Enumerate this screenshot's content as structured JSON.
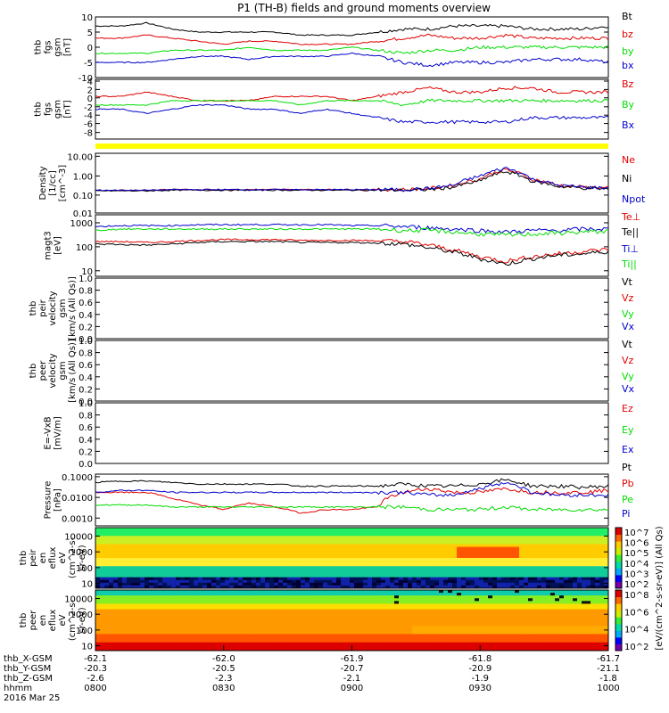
{
  "title": "P1 (TH-B) fields and ground moments overview",
  "colors": {
    "black": "#000000",
    "red": "#e00000",
    "green": "#00dd00",
    "blue": "#0000cc",
    "yellow": "#ffff00"
  },
  "chart_data": [
    {
      "type": "line",
      "ylabel": [
        "thb",
        "fgs",
        "gsm",
        "[nT]"
      ],
      "yticks": [
        "10",
        "5",
        "0",
        "-5",
        "-10"
      ],
      "ylim": [
        -10,
        10
      ],
      "series": [
        {
          "name": "Bt",
          "color": "#000000",
          "values": [
            7,
            7,
            8,
            6,
            5,
            5,
            5,
            5,
            4,
            4,
            4,
            5,
            6,
            6,
            7,
            7,
            7,
            6,
            6,
            6,
            7
          ]
        },
        {
          "name": "bz",
          "color": "#e00000",
          "values": [
            3,
            3,
            4,
            3,
            2,
            1,
            2,
            2,
            1,
            1,
            1,
            2,
            3,
            4,
            3,
            3,
            4,
            3,
            3,
            3,
            3
          ]
        },
        {
          "name": "by",
          "color": "#00dd00",
          "values": [
            -2,
            -2,
            -2,
            -1,
            -1,
            -1,
            0,
            -1,
            -1,
            -1,
            0,
            -1,
            -2,
            -1,
            -1,
            0,
            0,
            0,
            0,
            0,
            0
          ]
        },
        {
          "name": "bx",
          "color": "#0000cc",
          "values": [
            -5,
            -5,
            -5,
            -4,
            -3,
            -3,
            -4,
            -3,
            -3,
            -3,
            -2,
            -3,
            -5,
            -6,
            -5,
            -5,
            -5,
            -4,
            -4,
            -4,
            -5
          ]
        }
      ]
    },
    {
      "type": "line",
      "ylabel": [
        "thb",
        "fgs",
        "gsm",
        "[nT]"
      ],
      "yticks": [
        "4",
        "2",
        "0",
        "-2",
        "-4",
        "-6",
        "-8"
      ],
      "ylim": [
        -9,
        5
      ],
      "series": [
        {
          "name": "Bz",
          "color": "#e00000",
          "values": [
            1,
            1,
            2,
            1,
            0,
            0,
            0,
            1,
            1,
            1,
            0,
            1,
            2,
            3,
            2,
            2,
            3,
            3,
            2,
            2,
            2
          ]
        },
        {
          "name": "By",
          "color": "#00dd00",
          "values": [
            -1,
            -1,
            -1,
            0,
            0,
            0,
            0,
            0,
            -1,
            0,
            0,
            0,
            -1,
            0,
            0,
            0,
            0,
            0,
            0,
            0,
            0
          ]
        },
        {
          "name": "Bx",
          "color": "#0000cc",
          "values": [
            -2,
            -2,
            -3,
            -2,
            -1,
            -1,
            -2,
            -2,
            -3,
            -2,
            -3,
            -4,
            -5,
            -5,
            -5,
            -5,
            -5,
            -4,
            -4,
            -4,
            -4
          ]
        }
      ]
    },
    {
      "type": "line",
      "ylabel": [
        "Density",
        "[1/cc]",
        "[cm^-3]"
      ],
      "yticks": [
        "10.00",
        "1.00",
        "0.10",
        "0.01"
      ],
      "scale": "log",
      "ylim": [
        0.01,
        10
      ],
      "series": [
        {
          "name": "Ne",
          "color": "#e00000",
          "values": [
            0.14,
            0.14,
            0.14,
            0.15,
            0.15,
            0.15,
            0.15,
            0.15,
            0.15,
            0.15,
            0.15,
            0.15,
            0.15,
            0.17,
            0.25,
            0.5,
            1.5,
            0.5,
            0.25,
            0.2,
            0.18
          ]
        },
        {
          "name": "Ni",
          "color": "#000000",
          "values": [
            0.13,
            0.13,
            0.13,
            0.14,
            0.14,
            0.14,
            0.14,
            0.14,
            0.14,
            0.14,
            0.14,
            0.14,
            0.14,
            0.15,
            0.2,
            0.4,
            1.2,
            0.4,
            0.22,
            0.18,
            0.16
          ]
        },
        {
          "name": "Npot",
          "color": "#0000cc",
          "values": [
            0.14,
            0.14,
            0.14,
            0.15,
            0.15,
            0.15,
            0.15,
            0.15,
            0.15,
            0.15,
            0.15,
            0.15,
            0.15,
            0.17,
            0.25,
            0.7,
            1.8,
            0.5,
            0.25,
            0.2,
            0.18
          ]
        }
      ]
    },
    {
      "type": "line",
      "ylabel": [
        "magt3",
        "[eV]"
      ],
      "yticks": [
        "1000",
        "100",
        "10"
      ],
      "scale": "log",
      "ylim": [
        10,
        3000
      ],
      "series": [
        {
          "name": "Te⊥",
          "color": "#e00000",
          "values": [
            250,
            250,
            230,
            250,
            280,
            300,
            300,
            300,
            280,
            280,
            280,
            270,
            250,
            180,
            110,
            60,
            40,
            60,
            80,
            100,
            120
          ]
        },
        {
          "name": "Te||",
          "color": "#000000",
          "values": [
            200,
            190,
            180,
            200,
            230,
            250,
            250,
            250,
            230,
            230,
            230,
            220,
            200,
            140,
            90,
            50,
            30,
            50,
            70,
            80,
            100
          ]
        },
        {
          "name": "Ti⊥",
          "color": "#0000cc",
          "values": [
            1000,
            1100,
            1100,
            1100,
            1200,
            1200,
            1200,
            1200,
            1200,
            1200,
            1100,
            1100,
            1000,
            900,
            800,
            700,
            600,
            700,
            700,
            800,
            800
          ]
        },
        {
          "name": "Ti||",
          "color": "#00dd00",
          "values": [
            700,
            800,
            800,
            800,
            800,
            800,
            800,
            800,
            800,
            800,
            800,
            800,
            700,
            700,
            600,
            500,
            450,
            500,
            550,
            600,
            650
          ]
        }
      ]
    },
    {
      "type": "line",
      "ylabel": [
        "thb",
        "peir",
        "velocity",
        "gsm",
        "[km/s (All Qs)]"
      ],
      "yticks": [
        "1.0",
        "0.8",
        "0.6",
        "0.4",
        "0.2",
        "0.0"
      ],
      "ylim": [
        0,
        1
      ],
      "legend": [
        "Vt",
        "Vz",
        "Vy",
        "Vx"
      ],
      "series": []
    },
    {
      "type": "line",
      "ylabel": [
        "thb",
        "peer",
        "velocity",
        "gsm",
        "[km/s (All Qs)]"
      ],
      "yticks": [
        "1.0",
        "0.8",
        "0.6",
        "0.4",
        "0.2",
        "0.0"
      ],
      "ylim": [
        0,
        1
      ],
      "legend": [
        "Vt",
        "Vz",
        "Vy",
        "Vx"
      ],
      "series": []
    },
    {
      "type": "line",
      "ylabel": [
        "E=-VxB",
        "[mV/m]"
      ],
      "yticks": [
        "1.0",
        "0.8",
        "0.6",
        "0.4",
        "0.2",
        "0.0"
      ],
      "ylim": [
        0,
        1
      ],
      "legend": [
        "Ez",
        "Ey",
        "Ex"
      ],
      "series": []
    },
    {
      "type": "line",
      "ylabel": [
        "Pressure",
        "[nPa]"
      ],
      "yticks": [
        "0.1000",
        "0.0100",
        "0.0010"
      ],
      "scale": "log",
      "ylim": [
        0.0005,
        0.15
      ],
      "series": [
        {
          "name": "Pt",
          "color": "#000000",
          "values": [
            0.06,
            0.07,
            0.07,
            0.06,
            0.05,
            0.05,
            0.05,
            0.05,
            0.04,
            0.04,
            0.04,
            0.04,
            0.05,
            0.04,
            0.04,
            0.05,
            0.08,
            0.04,
            0.04,
            0.035,
            0.04
          ]
        },
        {
          "name": "Pb",
          "color": "#e00000",
          "values": [
            0.02,
            0.02,
            0.02,
            0.01,
            0.005,
            0.003,
            0.006,
            0.004,
            0.002,
            0.003,
            0.003,
            0.004,
            0.02,
            0.03,
            0.02,
            0.02,
            0.03,
            0.02,
            0.02,
            0.02,
            0.025
          ]
        },
        {
          "name": "Pe",
          "color": "#00dd00",
          "values": [
            0.005,
            0.005,
            0.005,
            0.004,
            0.004,
            0.004,
            0.004,
            0.004,
            0.004,
            0.004,
            0.004,
            0.004,
            0.004,
            0.003,
            0.003,
            0.003,
            0.004,
            0.003,
            0.003,
            0.003,
            0.003
          ]
        },
        {
          "name": "Pi",
          "color": "#0000cc",
          "values": [
            0.02,
            0.025,
            0.025,
            0.02,
            0.02,
            0.02,
            0.02,
            0.02,
            0.02,
            0.02,
            0.02,
            0.02,
            0.02,
            0.015,
            0.015,
            0.03,
            0.06,
            0.02,
            0.015,
            0.015,
            0.015
          ]
        }
      ]
    },
    {
      "type": "heatmap",
      "ylabel": [
        "thb",
        "peir",
        "en",
        "eflux",
        "eV",
        "(cm^2-s-",
        "sr-eV)"
      ],
      "yticks": [
        "10000",
        "1000",
        "100",
        "10"
      ],
      "scale": "log",
      "ylim": [
        5,
        25000
      ],
      "colorbar_ticks": [
        "10^7",
        "10^6",
        "10^5",
        "10^4",
        "10^3",
        "10^2"
      ],
      "colorbar_label": "[eV/(cm^2-s-sr-eV)] (All Qs)"
    },
    {
      "type": "heatmap",
      "ylabel": [
        "thb",
        "peer",
        "en",
        "eflux",
        "eV",
        "(cm^2-s-",
        "sr-eV)"
      ],
      "yticks": [
        "10000",
        "1000",
        "100",
        "10"
      ],
      "scale": "log",
      "ylim": [
        5,
        25000
      ],
      "colorbar_ticks": [
        "10^8",
        "10^6",
        "10^4",
        "10^2"
      ],
      "colorbar_label": "[eV/(cm^2-s-sr-eV)]"
    }
  ],
  "xaxis": {
    "row_labels": [
      "thb_X-GSM",
      "thb_Y-GSM",
      "thb_Z-GSM",
      "hhmm",
      "2016 Mar 25"
    ],
    "ticks": [
      {
        "x": "-62.1",
        "y": "-20.3",
        "z": "-2.6",
        "t": "0800"
      },
      {
        "x": "-62.0",
        "y": "-20.5",
        "z": "-2.3",
        "t": "0830"
      },
      {
        "x": "-61.9",
        "y": "-20.7",
        "z": "-2.1",
        "t": "0900"
      },
      {
        "x": "-61.8",
        "y": "-20.9",
        "z": "-1.9",
        "t": "0930"
      },
      {
        "x": "-61.7",
        "y": "-21.1",
        "z": "-1.8",
        "t": "1000"
      }
    ]
  }
}
